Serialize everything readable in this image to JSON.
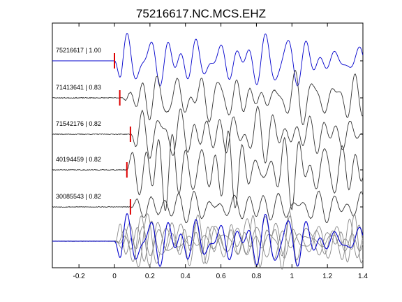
{
  "chart_data": {
    "type": "line",
    "title": "75216617.NC.MCS.EHZ",
    "xlabel": "",
    "ylabel": "",
    "xlim": [
      -0.35,
      1.4
    ],
    "x_ticks": [
      -0.2,
      0,
      0.2,
      0.4,
      0.6,
      0.8,
      1,
      1.2,
      1.4
    ],
    "x_tick_labels": [
      "-0.2",
      "0",
      "0.2",
      "0.4",
      "0.6",
      "0.8",
      "1",
      "1.2",
      "1.4"
    ],
    "grid": false,
    "colors": {
      "master_trace": "#0000cc",
      "similar_trace": "#333333",
      "stack_trace": "#888888",
      "pick_marker": "#dd0000",
      "axis": "#000000"
    },
    "traces": [
      {
        "label": "75216617 | 1.00",
        "event_id": "75216617",
        "correlation": 1.0,
        "pick_time": 0.0,
        "role": "master"
      },
      {
        "label": "71413641 | 0.83",
        "event_id": "71413641",
        "correlation": 0.83,
        "pick_time": 0.03,
        "role": "similar"
      },
      {
        "label": "71542176 | 0.82",
        "event_id": "71542176",
        "correlation": 0.82,
        "pick_time": 0.09,
        "role": "similar"
      },
      {
        "label": "40194459 | 0.82",
        "event_id": "40194459",
        "correlation": 0.82,
        "pick_time": 0.07,
        "role": "similar"
      },
      {
        "label": "30085543 | 0.82",
        "event_id": "30085543",
        "correlation": 0.82,
        "pick_time": 0.09,
        "role": "similar"
      }
    ]
  }
}
